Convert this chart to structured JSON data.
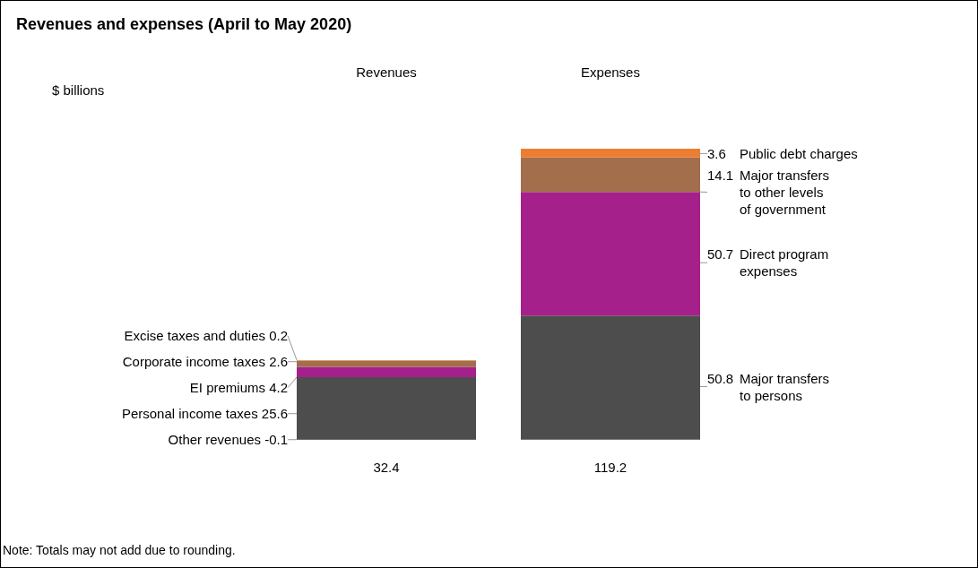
{
  "chart_data": {
    "type": "bar",
    "title": "Revenues and expenses (April to May 2020)",
    "categories": [
      "Revenues",
      "Expenses"
    ],
    "stacked": true,
    "data_labels": true,
    "totals": [
      "32.4",
      "119.2"
    ],
    "series": [
      {
        "name": "Other revenues",
        "color": "#262626",
        "values": [
          -0.1,
          null
        ]
      },
      {
        "name": "Personal income taxes",
        "color": "#4d4d4d",
        "values": [
          25.6,
          null
        ]
      },
      {
        "name": "EI premiums",
        "color": "#a6208c",
        "values": [
          4.2,
          null
        ]
      },
      {
        "name": "Corporate income taxes",
        "color": "#a26e4b",
        "values": [
          2.6,
          null
        ]
      },
      {
        "name": "Excise taxes and duties",
        "color": "#ed7d31",
        "values": [
          0.2,
          null
        ]
      },
      {
        "name": "Major transfers to persons",
        "color": "#4d4d4d",
        "values": [
          null,
          50.8
        ]
      },
      {
        "name": "Direct program expenses",
        "color": "#a6208c",
        "values": [
          null,
          50.7
        ]
      },
      {
        "name": "Major transfers to other levels of government",
        "color": "#a26e4b",
        "values": [
          null,
          14.1
        ]
      },
      {
        "name": "Public debt charges",
        "color": "#ed7d31",
        "values": [
          null,
          3.6
        ]
      }
    ],
    "annotations": [
      "$ billions",
      "Note: Totals may not add due to rounding."
    ]
  }
}
